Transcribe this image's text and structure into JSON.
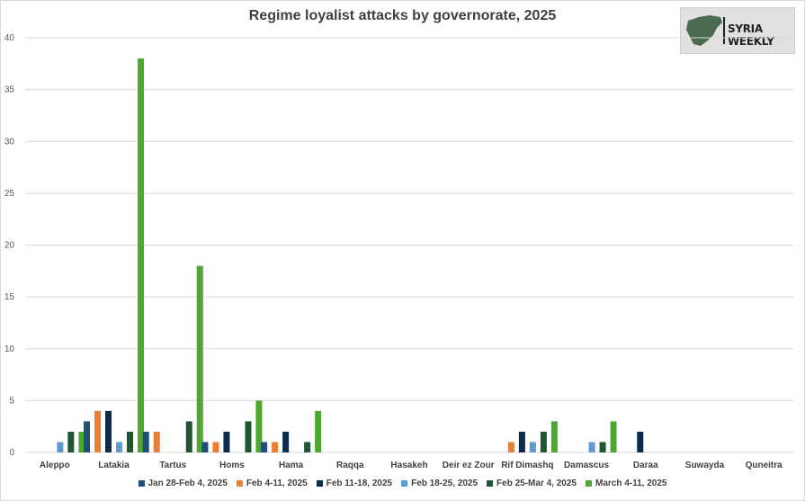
{
  "chart_data": {
    "type": "bar",
    "title": "Regime loyalist attacks by governorate, 2025",
    "categories": [
      "Aleppo",
      "Latakia",
      "Tartus",
      "Homs",
      "Hama",
      "Raqqa",
      "Hasakeh",
      "Deir ez Zour",
      "Rif Dimashq",
      "Damascus",
      "Daraa",
      "Suwayda",
      "Quneitra"
    ],
    "series": [
      {
        "name": "Jan 28-Feb 4, 2025",
        "color": "#1f4e79",
        "values": [
          0,
          3,
          2,
          1,
          1,
          0,
          0,
          0,
          0,
          0,
          0,
          0,
          0
        ]
      },
      {
        "name": "Feb 4-11, 2025",
        "color": "#ed7d31",
        "values": [
          0,
          4,
          2,
          1,
          1,
          0,
          0,
          0,
          1,
          0,
          0,
          0,
          0
        ]
      },
      {
        "name": "Feb 11-18, 2025",
        "color": "#0d2b4a",
        "values": [
          0,
          4,
          0,
          2,
          2,
          0,
          0,
          0,
          2,
          0,
          2,
          0,
          0
        ]
      },
      {
        "name": "Feb 18-25, 2025",
        "color": "#5b9bd5",
        "values": [
          1,
          1,
          0,
          0,
          0,
          0,
          0,
          0,
          1,
          1,
          0,
          0,
          0
        ]
      },
      {
        "name": "Feb 25-Mar 4, 2025",
        "color": "#1e5631",
        "values": [
          2,
          2,
          3,
          3,
          1,
          0,
          0,
          0,
          2,
          1,
          0,
          0,
          0
        ]
      },
      {
        "name": "March 4-11, 2025",
        "color": "#4ea72e",
        "values": [
          2,
          38,
          18,
          5,
          4,
          0,
          0,
          0,
          3,
          3,
          0,
          0,
          0
        ]
      }
    ],
    "ylim": [
      0,
      40
    ],
    "yticks": [
      0,
      5,
      10,
      15,
      20,
      25,
      30,
      35,
      40
    ],
    "grid": true,
    "legend_position": "bottom"
  },
  "logo": {
    "text": "SYRIA WEEKLY"
  }
}
